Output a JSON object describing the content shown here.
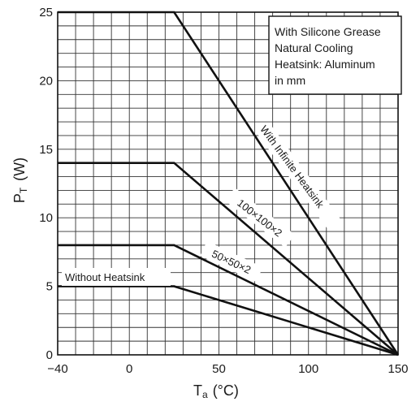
{
  "chart_data": {
    "type": "line",
    "xlabel_main": "T",
    "xlabel_sub": "a",
    "xlabel_unit": "(°C)",
    "ylabel_main": "P",
    "ylabel_sub": "T",
    "ylabel_unit": "(W)",
    "xlim": [
      -40,
      150
    ],
    "ylim": [
      0,
      25
    ],
    "x_ticks": [
      -40,
      0,
      50,
      100,
      150
    ],
    "x_tick_labels": [
      "−40",
      "0",
      "50",
      "100",
      "150"
    ],
    "y_ticks": [
      0,
      5,
      10,
      15,
      20,
      25
    ],
    "y_tick_labels": [
      "0",
      "5",
      "10",
      "15",
      "20",
      "25"
    ],
    "grid": true,
    "legend_lines": [
      "With Silicone Grease",
      "Natural Cooling",
      "Heatsink: Aluminum",
      "in mm"
    ],
    "legend_position": "top-right",
    "series": [
      {
        "name": "With Infinite Heatsink",
        "x": [
          -40,
          25,
          150
        ],
        "y": [
          25,
          25,
          0
        ]
      },
      {
        "name": "100×100×2",
        "x": [
          -40,
          25,
          150
        ],
        "y": [
          14,
          14,
          0
        ]
      },
      {
        "name": "50×50×2",
        "x": [
          -40,
          25,
          150
        ],
        "y": [
          8,
          8,
          0
        ]
      },
      {
        "name": "Without Heatsink",
        "x": [
          -40,
          25,
          150
        ],
        "y": [
          5,
          5,
          0
        ]
      }
    ],
    "colors": {
      "line": "#111111",
      "grid": "#333333"
    }
  }
}
